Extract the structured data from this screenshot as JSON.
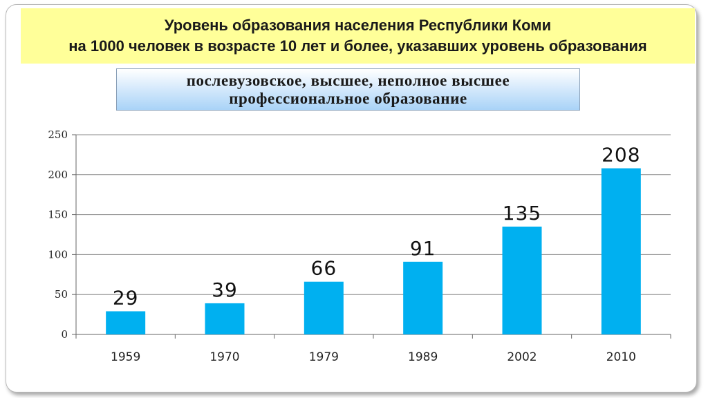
{
  "title": {
    "line1": "Уровень образования населения Республики Коми",
    "line2": "на 1000 человек в возрасте 10 лет и более, указавших уровень образования"
  },
  "subtitle": {
    "line1": "послевузовское, высшее, неполное высшее",
    "line2": "профессиональное образование"
  },
  "colors": {
    "bar": "#00b0f0",
    "title_band": "#ffff99",
    "grid": "#888888"
  },
  "chart_data": {
    "type": "bar",
    "categories": [
      "1959",
      "1970",
      "1979",
      "1989",
      "2002",
      "2010"
    ],
    "values": [
      29,
      39,
      66,
      91,
      135,
      208
    ],
    "data_labels": [
      "29",
      "39",
      "66",
      "91",
      "135",
      "208"
    ],
    "y_ticks": [
      "0",
      "50",
      "100",
      "150",
      "200",
      "250"
    ],
    "ylim": [
      0,
      250
    ],
    "grid": true,
    "legend": "none"
  }
}
